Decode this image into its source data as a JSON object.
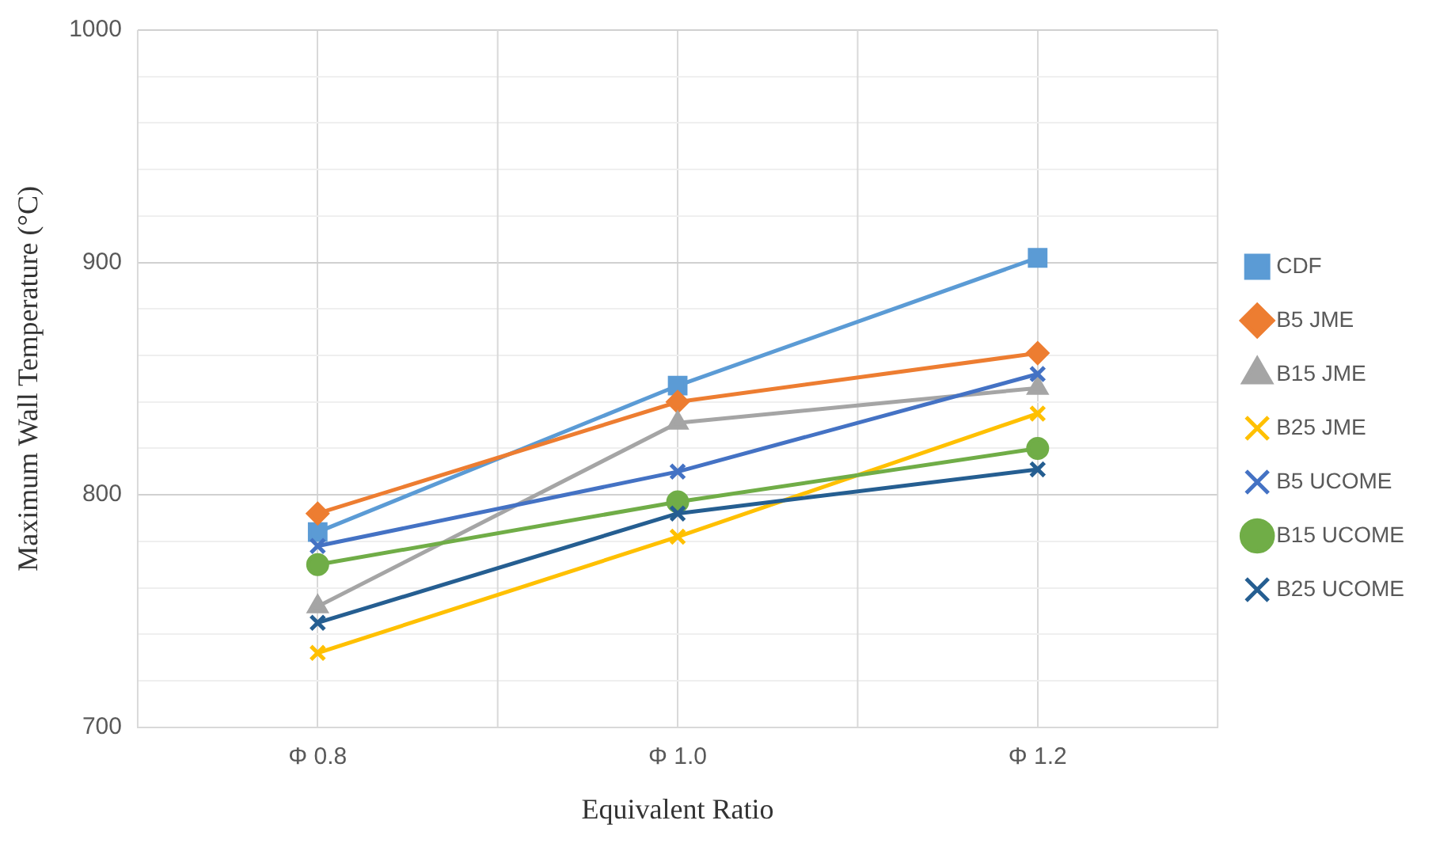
{
  "chart_data": {
    "type": "line",
    "xlabel": "Equivalent Ratio",
    "ylabel": "Maximum Wall Temperature (°C)",
    "categories": [
      "Φ 0.8",
      "Φ 1.0",
      "Φ 1.2"
    ],
    "series": [
      {
        "name": "CDF",
        "color": "#5b9bd5",
        "marker": "square",
        "values": [
          784,
          847,
          902
        ]
      },
      {
        "name": "B5 JME",
        "color": "#ed7d31",
        "marker": "diamond",
        "values": [
          792,
          840,
          861
        ]
      },
      {
        "name": "B15 JME",
        "color": "#a5a5a5",
        "marker": "triangle",
        "values": [
          752,
          831,
          846
        ]
      },
      {
        "name": "B25 JME",
        "color": "#ffc000",
        "marker": "cross",
        "values": [
          732,
          782,
          835
        ]
      },
      {
        "name": "B5 UCOME",
        "color": "#4472c4",
        "marker": "cross",
        "values": [
          778,
          810,
          852
        ]
      },
      {
        "name": "B15 UCOME",
        "color": "#70ad47",
        "marker": "circle",
        "values": [
          770,
          797,
          820
        ]
      },
      {
        "name": "B25 UCOME",
        "color": "#255e91",
        "marker": "cross",
        "values": [
          745,
          792,
          811
        ]
      }
    ],
    "ylim": [
      700,
      1000
    ],
    "yticks": [
      700,
      {
        "value": 720,
        "label": null
      },
      {
        "value": 740,
        "label": null
      },
      {
        "value": 760,
        "label": null
      },
      {
        "value": 780,
        "label": null
      },
      800,
      {
        "value": 820,
        "label": null
      },
      {
        "value": 840,
        "label": null
      },
      {
        "value": 860,
        "label": null
      },
      {
        "value": 880,
        "label": null
      },
      900,
      {
        "value": 920,
        "label": null
      },
      {
        "value": 940,
        "label": null
      },
      {
        "value": 960,
        "label": null
      },
      {
        "value": 980,
        "label": null
      },
      1000
    ],
    "grid": true,
    "legend": "right",
    "line_style": "solid"
  }
}
